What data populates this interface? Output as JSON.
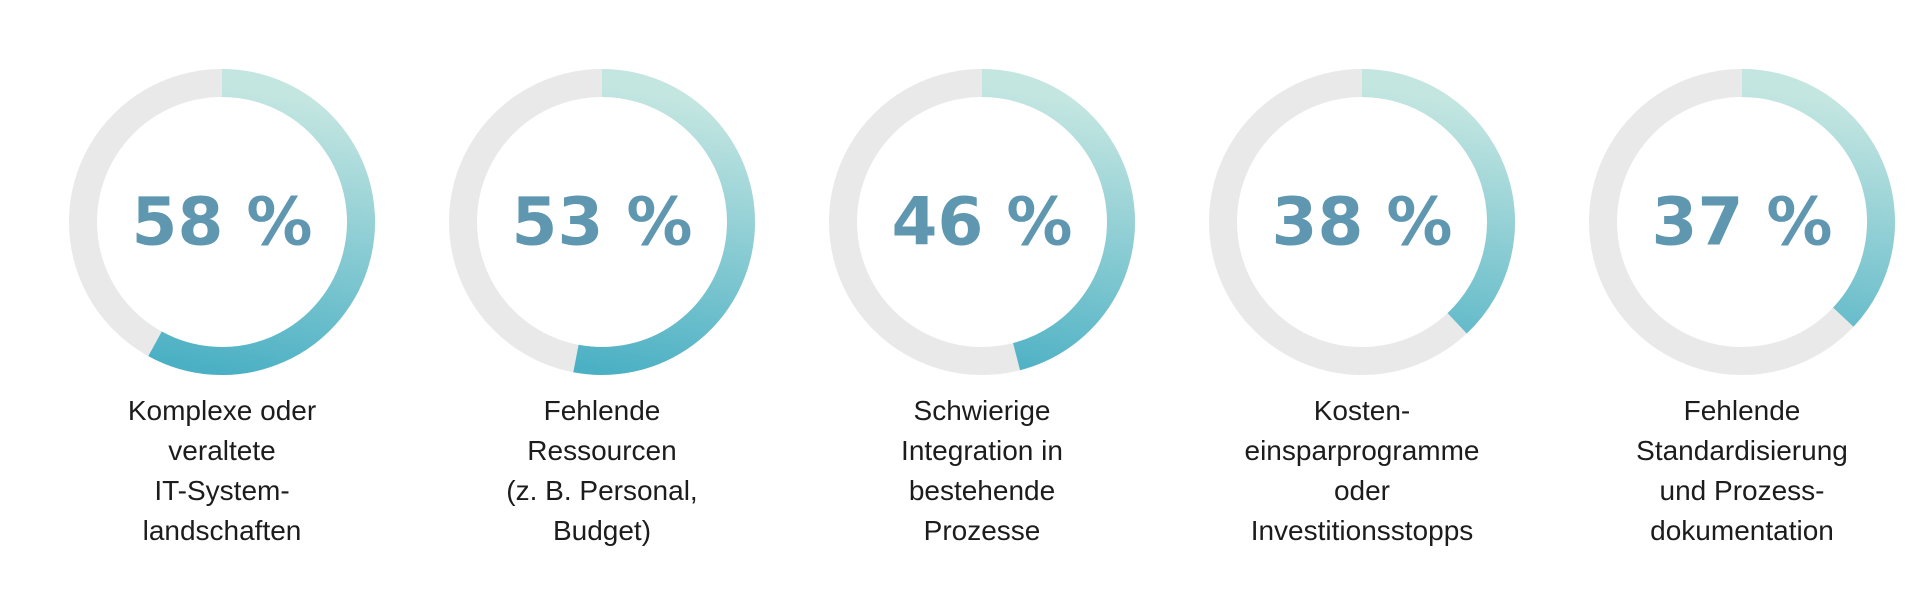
{
  "chart_data": {
    "type": "donut-progress",
    "unit": "%",
    "items": [
      {
        "value": 58,
        "label": "58 %",
        "category_lines": [
          "Komplexe oder",
          "veraltete",
          "IT-System-",
          "landschaften"
        ]
      },
      {
        "value": 53,
        "label": "53 %",
        "category_lines": [
          "Fehlende",
          "Ressourcen",
          "(z. B. Personal,",
          "Budget)"
        ]
      },
      {
        "value": 46,
        "label": "46 %",
        "category_lines": [
          "Schwierige",
          "Integration in",
          "bestehende",
          "Prozesse"
        ]
      },
      {
        "value": 38,
        "label": "38 %",
        "category_lines": [
          "Kosten-",
          "einsparprogramme",
          "oder",
          "Investitionsstopps"
        ]
      },
      {
        "value": 37,
        "label": "37 %",
        "category_lines": [
          "Fehlende",
          "Standardisierung",
          "und Prozess-",
          "dokumentation"
        ]
      }
    ],
    "colors": {
      "track": "#e9e9e9",
      "arc_start": "#c4e6e1",
      "arc_end": "#4bb0c4",
      "value_text": "#5f97b0",
      "label_text": "#1c1c1c"
    }
  }
}
